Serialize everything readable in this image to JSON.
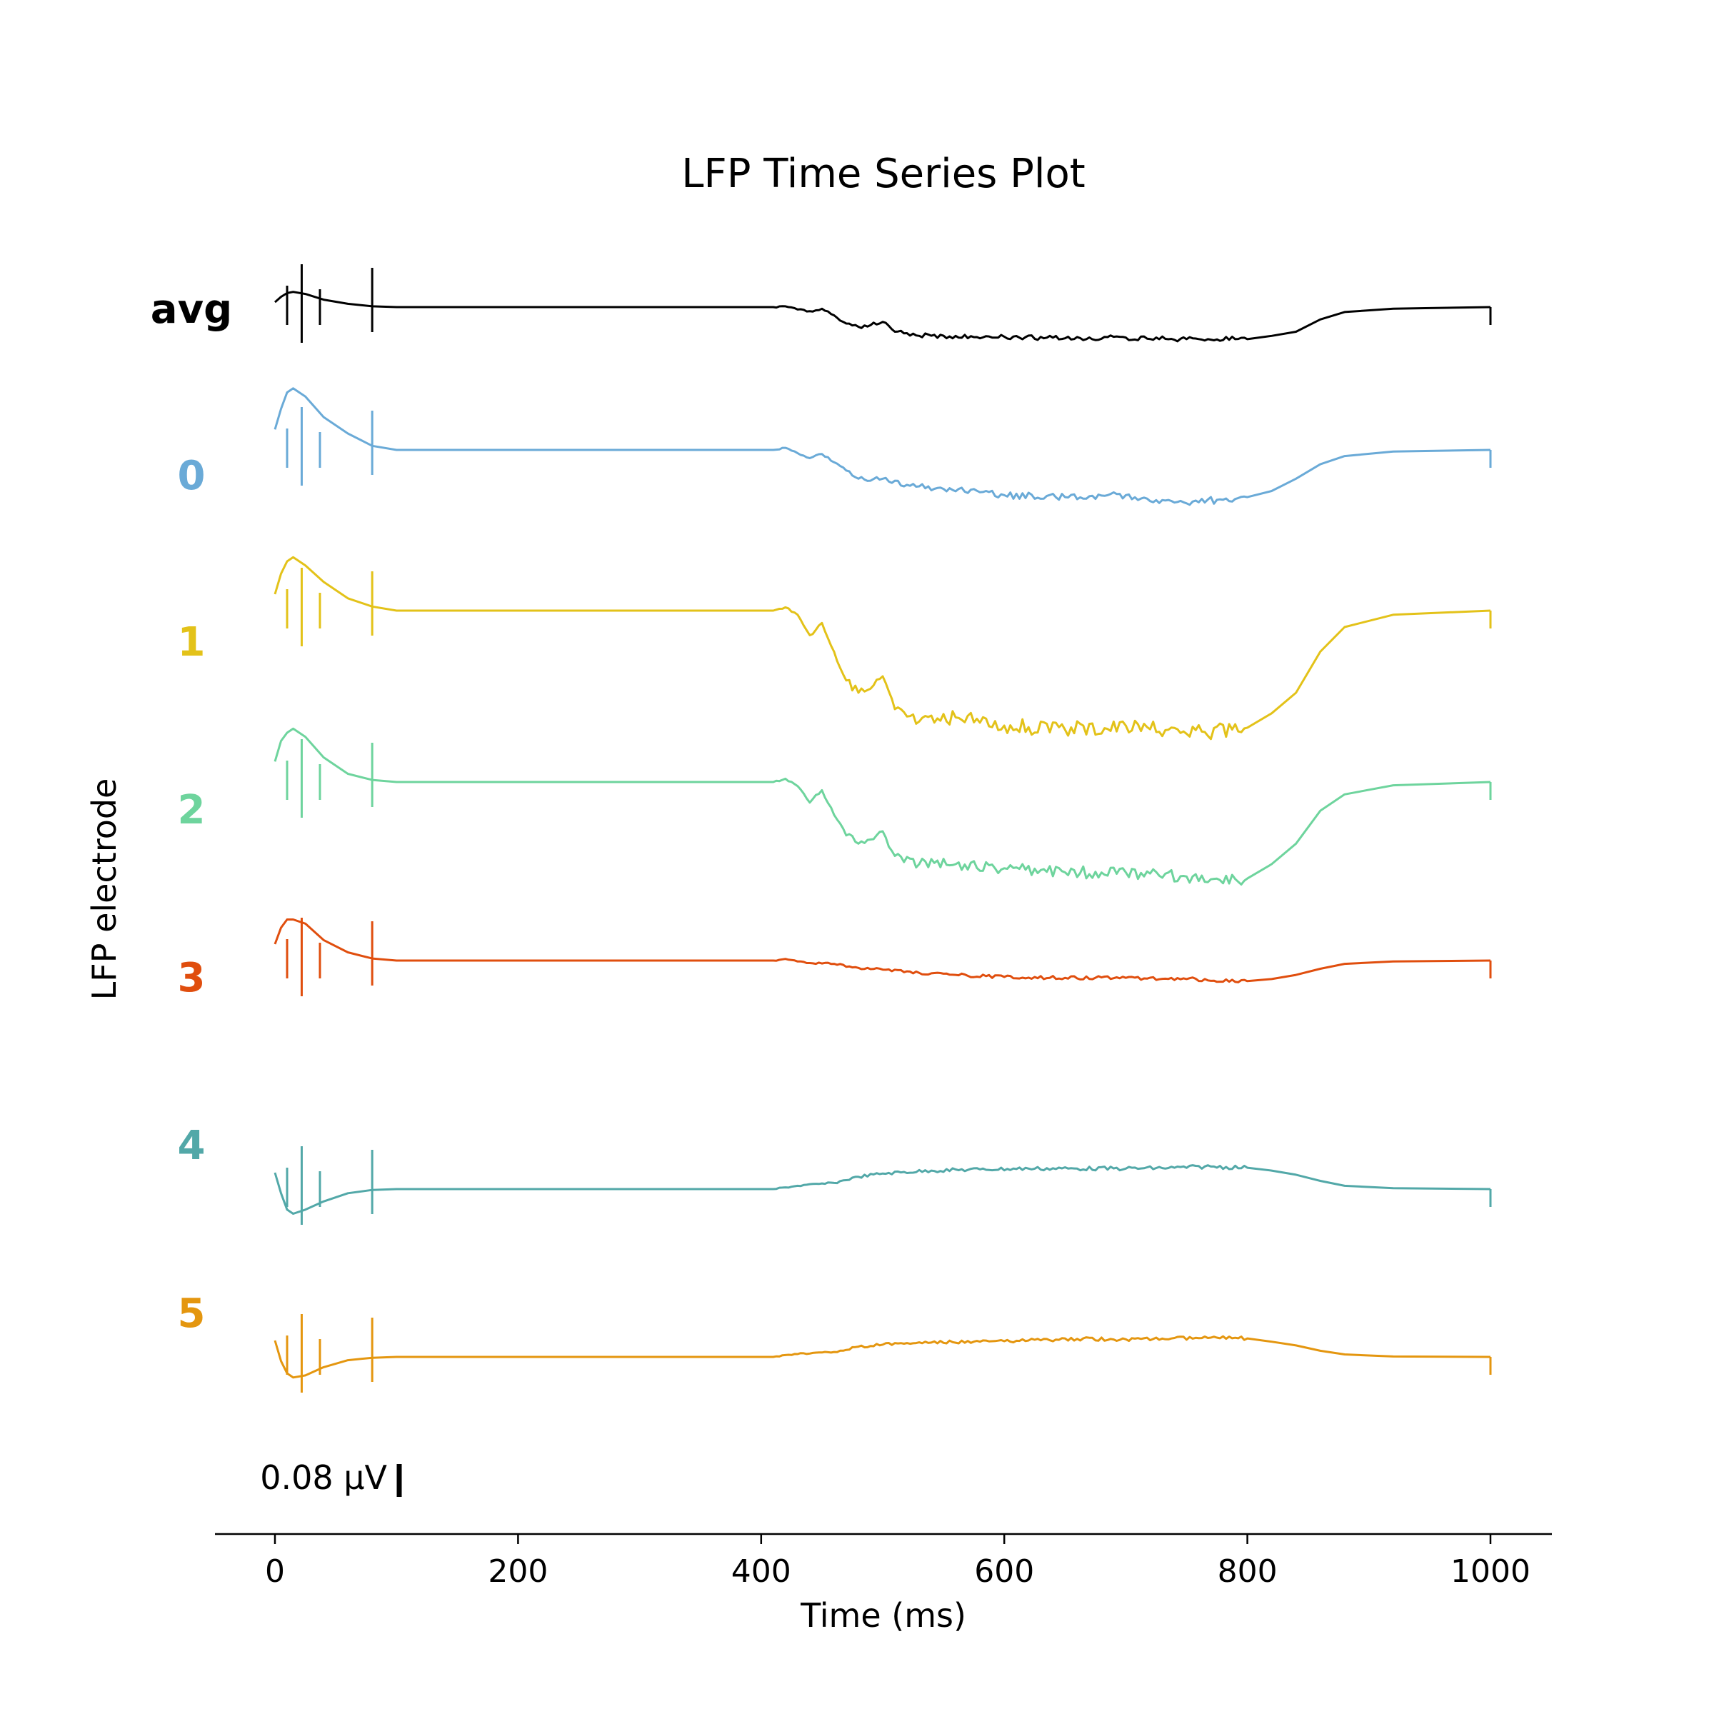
{
  "chart_data": {
    "type": "line",
    "title": "LFP Time Series Plot",
    "xlabel": "Time (ms)",
    "ylabel": "LFP electrode",
    "xlim": [
      -50,
      1050
    ],
    "xticks": [
      0,
      200,
      400,
      600,
      800,
      1000
    ],
    "xtick_labels": [
      "0",
      "200",
      "400",
      "600",
      "800",
      "1000"
    ],
    "scale_bar": {
      "label": "0.08 μV",
      "value": 0.08
    },
    "grid": false,
    "legend": "none",
    "stim_times_ms": [
      10,
      22,
      37,
      80
    ],
    "series": [
      {
        "name": "avg",
        "color": "#000000",
        "points": [
          [
            0,
            0.012
          ],
          [
            5,
            0.025
          ],
          [
            10,
            0.034
          ],
          [
            15,
            0.037
          ],
          [
            25,
            0.032
          ],
          [
            40,
            0.018
          ],
          [
            60,
            0.008
          ],
          [
            80,
            0.002
          ],
          [
            100,
            0
          ],
          [
            410,
            0
          ],
          [
            420,
            0.002
          ],
          [
            430,
            -0.006
          ],
          [
            440,
            -0.01
          ],
          [
            450,
            -0.004
          ],
          [
            460,
            -0.02
          ],
          [
            470,
            -0.04
          ],
          [
            480,
            -0.048
          ],
          [
            490,
            -0.044
          ],
          [
            500,
            -0.036
          ],
          [
            510,
            -0.06
          ],
          [
            530,
            -0.07
          ],
          [
            560,
            -0.07
          ],
          [
            600,
            -0.072
          ],
          [
            650,
            -0.076
          ],
          [
            700,
            -0.074
          ],
          [
            750,
            -0.078
          ],
          [
            800,
            -0.078
          ],
          [
            820,
            -0.07
          ],
          [
            840,
            -0.06
          ],
          [
            860,
            -0.03
          ],
          [
            880,
            -0.012
          ],
          [
            920,
            -0.004
          ],
          [
            1000,
            0
          ]
        ]
      },
      {
        "name": "0",
        "color": "#6aaad7",
        "points": [
          [
            0,
            0.05
          ],
          [
            5,
            0.1
          ],
          [
            10,
            0.14
          ],
          [
            15,
            0.15
          ],
          [
            25,
            0.13
          ],
          [
            40,
            0.08
          ],
          [
            60,
            0.04
          ],
          [
            80,
            0.01
          ],
          [
            100,
            0
          ],
          [
            410,
            0
          ],
          [
            420,
            0.005
          ],
          [
            430,
            -0.008
          ],
          [
            440,
            -0.02
          ],
          [
            450,
            -0.01
          ],
          [
            460,
            -0.03
          ],
          [
            470,
            -0.05
          ],
          [
            480,
            -0.07
          ],
          [
            490,
            -0.075
          ],
          [
            500,
            -0.07
          ],
          [
            520,
            -0.085
          ],
          [
            550,
            -0.095
          ],
          [
            600,
            -0.11
          ],
          [
            650,
            -0.115
          ],
          [
            700,
            -0.11
          ],
          [
            750,
            -0.13
          ],
          [
            800,
            -0.115
          ],
          [
            820,
            -0.1
          ],
          [
            840,
            -0.07
          ],
          [
            860,
            -0.035
          ],
          [
            880,
            -0.015
          ],
          [
            920,
            -0.004
          ],
          [
            1000,
            0
          ]
        ]
      },
      {
        "name": "1",
        "color": "#e3c219",
        "points": [
          [
            0,
            0.04
          ],
          [
            5,
            0.09
          ],
          [
            10,
            0.12
          ],
          [
            15,
            0.13
          ],
          [
            25,
            0.11
          ],
          [
            40,
            0.07
          ],
          [
            60,
            0.03
          ],
          [
            80,
            0.01
          ],
          [
            100,
            0
          ],
          [
            410,
            0
          ],
          [
            420,
            0.008
          ],
          [
            430,
            -0.01
          ],
          [
            440,
            -0.06
          ],
          [
            450,
            -0.03
          ],
          [
            460,
            -0.1
          ],
          [
            470,
            -0.17
          ],
          [
            480,
            -0.2
          ],
          [
            490,
            -0.19
          ],
          [
            500,
            -0.16
          ],
          [
            510,
            -0.24
          ],
          [
            530,
            -0.27
          ],
          [
            560,
            -0.26
          ],
          [
            600,
            -0.28
          ],
          [
            650,
            -0.29
          ],
          [
            700,
            -0.28
          ],
          [
            750,
            -0.3
          ],
          [
            800,
            -0.285
          ],
          [
            820,
            -0.25
          ],
          [
            840,
            -0.2
          ],
          [
            860,
            -0.1
          ],
          [
            880,
            -0.04
          ],
          [
            920,
            -0.01
          ],
          [
            1000,
            0
          ]
        ]
      },
      {
        "name": "2",
        "color": "#6ed49d",
        "points": [
          [
            0,
            0.05
          ],
          [
            5,
            0.1
          ],
          [
            10,
            0.12
          ],
          [
            15,
            0.13
          ],
          [
            25,
            0.11
          ],
          [
            40,
            0.06
          ],
          [
            60,
            0.02
          ],
          [
            80,
            0.005
          ],
          [
            100,
            0
          ],
          [
            410,
            0
          ],
          [
            420,
            0.008
          ],
          [
            430,
            -0.01
          ],
          [
            440,
            -0.05
          ],
          [
            450,
            -0.02
          ],
          [
            460,
            -0.08
          ],
          [
            470,
            -0.13
          ],
          [
            480,
            -0.15
          ],
          [
            490,
            -0.14
          ],
          [
            500,
            -0.12
          ],
          [
            510,
            -0.18
          ],
          [
            530,
            -0.2
          ],
          [
            560,
            -0.2
          ],
          [
            600,
            -0.21
          ],
          [
            650,
            -0.22
          ],
          [
            700,
            -0.22
          ],
          [
            750,
            -0.23
          ],
          [
            800,
            -0.235
          ],
          [
            820,
            -0.2
          ],
          [
            840,
            -0.15
          ],
          [
            860,
            -0.07
          ],
          [
            880,
            -0.03
          ],
          [
            920,
            -0.008
          ],
          [
            1000,
            0
          ]
        ]
      },
      {
        "name": "3",
        "color": "#e04e0e",
        "points": [
          [
            0,
            0.04
          ],
          [
            5,
            0.08
          ],
          [
            10,
            0.1
          ],
          [
            15,
            0.1
          ],
          [
            25,
            0.09
          ],
          [
            40,
            0.05
          ],
          [
            60,
            0.02
          ],
          [
            80,
            0.005
          ],
          [
            100,
            0
          ],
          [
            410,
            0
          ],
          [
            420,
            0.004
          ],
          [
            440,
            -0.006
          ],
          [
            460,
            -0.008
          ],
          [
            480,
            -0.018
          ],
          [
            500,
            -0.022
          ],
          [
            530,
            -0.03
          ],
          [
            560,
            -0.035
          ],
          [
            600,
            -0.04
          ],
          [
            650,
            -0.042
          ],
          [
            700,
            -0.042
          ],
          [
            750,
            -0.045
          ],
          [
            800,
            -0.05
          ],
          [
            820,
            -0.045
          ],
          [
            840,
            -0.035
          ],
          [
            860,
            -0.02
          ],
          [
            880,
            -0.008
          ],
          [
            920,
            -0.002
          ],
          [
            1000,
            0
          ]
        ]
      },
      {
        "name": "4",
        "color": "#52a8a8",
        "points": [
          [
            0,
            0.04
          ],
          [
            5,
            -0.01
          ],
          [
            10,
            -0.05
          ],
          [
            15,
            -0.06
          ],
          [
            25,
            -0.05
          ],
          [
            40,
            -0.03
          ],
          [
            60,
            -0.01
          ],
          [
            80,
            -0.002
          ],
          [
            100,
            0
          ],
          [
            410,
            0
          ],
          [
            430,
            0.008
          ],
          [
            460,
            0.015
          ],
          [
            480,
            0.03
          ],
          [
            500,
            0.038
          ],
          [
            540,
            0.045
          ],
          [
            580,
            0.048
          ],
          [
            620,
            0.05
          ],
          [
            660,
            0.05
          ],
          [
            700,
            0.05
          ],
          [
            740,
            0.052
          ],
          [
            770,
            0.055
          ],
          [
            800,
            0.052
          ],
          [
            820,
            0.045
          ],
          [
            840,
            0.035
          ],
          [
            860,
            0.02
          ],
          [
            880,
            0.008
          ],
          [
            920,
            0.002
          ],
          [
            1000,
            0
          ]
        ]
      },
      {
        "name": "5",
        "color": "#e4960f",
        "points": [
          [
            0,
            0.04
          ],
          [
            5,
            -0.01
          ],
          [
            10,
            -0.04
          ],
          [
            15,
            -0.05
          ],
          [
            25,
            -0.045
          ],
          [
            40,
            -0.025
          ],
          [
            60,
            -0.008
          ],
          [
            80,
            -0.002
          ],
          [
            100,
            0
          ],
          [
            410,
            0
          ],
          [
            430,
            0.007
          ],
          [
            460,
            0.012
          ],
          [
            480,
            0.025
          ],
          [
            500,
            0.03
          ],
          [
            540,
            0.035
          ],
          [
            580,
            0.037
          ],
          [
            620,
            0.04
          ],
          [
            660,
            0.044
          ],
          [
            700,
            0.043
          ],
          [
            740,
            0.046
          ],
          [
            770,
            0.047
          ],
          [
            800,
            0.045
          ],
          [
            820,
            0.037
          ],
          [
            840,
            0.028
          ],
          [
            860,
            0.015
          ],
          [
            880,
            0.006
          ],
          [
            920,
            0.001
          ],
          [
            1000,
            0
          ]
        ]
      }
    ]
  }
}
